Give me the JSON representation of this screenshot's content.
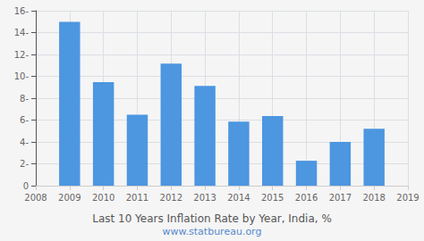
{
  "chart_data": {
    "type": "bar",
    "title": "Last 10 Years Inflation Rate by Year, India, %",
    "subtitle": "www.statbureau.org",
    "x": [
      2009,
      2010,
      2011,
      2012,
      2013,
      2014,
      2015,
      2016,
      2017,
      2018
    ],
    "values": [
      14.97,
      9.47,
      6.49,
      11.17,
      9.13,
      5.86,
      6.37,
      2.28,
      3.99,
      5.21
    ],
    "color": "#4d96e0",
    "xlim": [
      2008,
      2019
    ],
    "xticks": [
      2008,
      2009,
      2010,
      2011,
      2012,
      2013,
      2014,
      2015,
      2016,
      2017,
      2018,
      2019
    ],
    "ylim": [
      0,
      16
    ],
    "yticks": [
      0,
      {
        "value": 2,
        "label": "2-"
      },
      {
        "value": 4,
        "label": "4-"
      },
      {
        "value": 6,
        "label": "6-"
      },
      {
        "value": 8,
        "label": "8-"
      },
      {
        "value": 10,
        "label": "10-"
      },
      {
        "value": 12,
        "label": "12-"
      },
      {
        "value": 14,
        "label": "14-"
      },
      {
        "value": 16,
        "label": "16-"
      }
    ],
    "grid": true
  }
}
